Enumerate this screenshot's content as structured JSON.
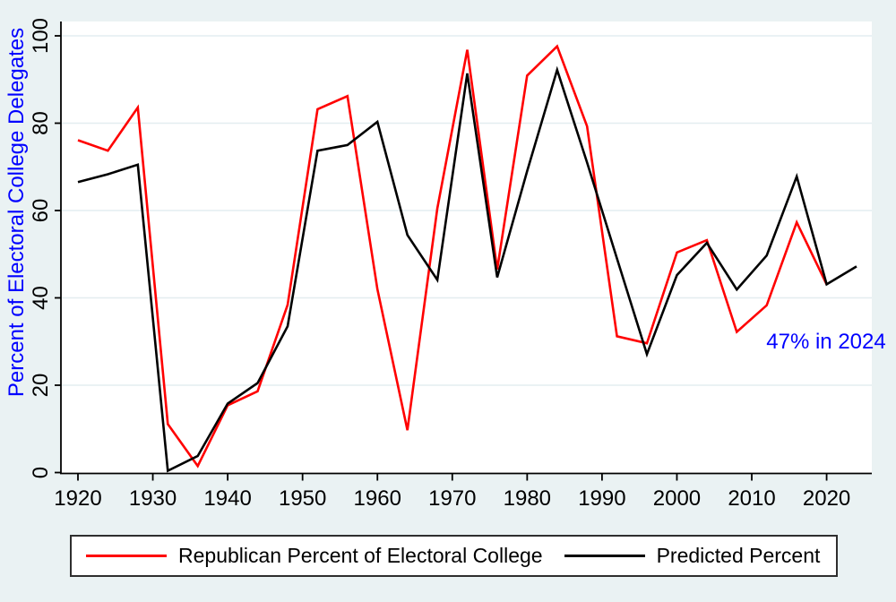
{
  "figure": {
    "background": "#EAF2F3",
    "plot_bg": "#FFFFFF",
    "grid_color": "#E3EDF0",
    "axis_color": "#000000",
    "tick_label_color": "#000000"
  },
  "y_axis": {
    "title": "Percent of Electoral College Delegates",
    "title_color": "#0000FF",
    "ticks": [
      0,
      20,
      40,
      60,
      80,
      100
    ]
  },
  "x_axis": {
    "ticks": [
      1920,
      1930,
      1940,
      1950,
      1960,
      1970,
      1980,
      1990,
      2000,
      2010,
      2020
    ]
  },
  "annotation": {
    "text": "47% in 2024",
    "color": "#0000FF"
  },
  "legend": {
    "entries": [
      {
        "label": "Republican Percent of Electoral College",
        "color": "#FF0000"
      },
      {
        "label": "Predicted Percent",
        "color": "#000000"
      }
    ]
  },
  "chart_data": {
    "type": "line",
    "title": "",
    "xlabel": "",
    "ylabel": "Percent of Electoral College Delegates",
    "ylim": [
      0,
      100
    ],
    "xlim": [
      1917.7,
      2026
    ],
    "grid": "horizontal",
    "legend_position": "bottom",
    "series": [
      {
        "name": "Republican Percent of Electoral College",
        "color": "#FF0000",
        "x": [
          1920,
          1924,
          1928,
          1932,
          1936,
          1940,
          1944,
          1948,
          1952,
          1956,
          1960,
          1964,
          1968,
          1972,
          1976,
          1980,
          1984,
          1988,
          1992,
          1996,
          2000,
          2004,
          2008,
          2012,
          2016,
          2020
        ],
        "values": [
          76.1,
          73.7,
          83.6,
          11.1,
          1.5,
          15.4,
          18.6,
          38.4,
          83.2,
          86.2,
          42.0,
          9.7,
          60.5,
          96.8,
          46.5,
          90.9,
          97.6,
          79.3,
          31.2,
          29.6,
          50.4,
          53.2,
          32.2,
          38.3,
          57.3,
          43.1
        ]
      },
      {
        "name": "Predicted Percent",
        "color": "#000000",
        "x": [
          1920,
          1924,
          1928,
          1932,
          1936,
          1940,
          1944,
          1948,
          1952,
          1956,
          1960,
          1964,
          1968,
          1972,
          1976,
          1980,
          1984,
          1988,
          1992,
          1996,
          2000,
          2004,
          2008,
          2012,
          2016,
          2020,
          2024
        ],
        "values": [
          66.5,
          68.3,
          70.5,
          0.4,
          3.8,
          15.8,
          20.5,
          33.5,
          73.7,
          75.0,
          80.3,
          54.4,
          44.1,
          91.4,
          44.7,
          69.0,
          92.2,
          71.0,
          49.0,
          27.1,
          45.2,
          52.6,
          41.9,
          49.7,
          67.8,
          43.1,
          47.2
        ]
      }
    ],
    "annotations": [
      {
        "x": 2024,
        "y": 47,
        "text": "47% in 2024"
      }
    ]
  }
}
